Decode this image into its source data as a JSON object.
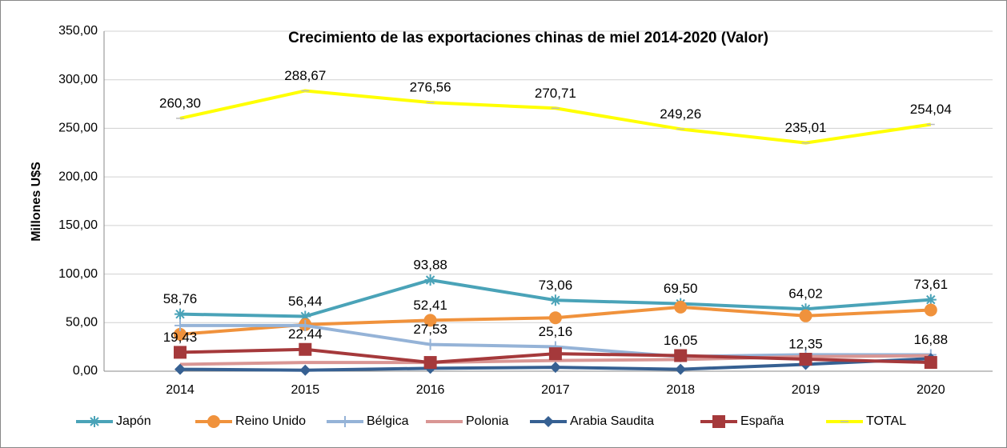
{
  "chart_data": {
    "type": "line",
    "title": "Crecimiento de las exportaciones chinas de miel 2014-2020 (Valor)",
    "y_label": "Millones U$S",
    "categories": [
      "2014",
      "2015",
      "2016",
      "2017",
      "2018",
      "2019",
      "2020"
    ],
    "ylim": [
      0,
      350
    ],
    "yticks": [
      {
        "value": 0,
        "label": "0,00"
      },
      {
        "value": 50,
        "label": "50,00"
      },
      {
        "value": 100,
        "label": "100,00"
      },
      {
        "value": 150,
        "label": "150,00"
      },
      {
        "value": 200,
        "label": "200,00"
      },
      {
        "value": 250,
        "label": "250,00"
      },
      {
        "value": 300,
        "label": "300,00"
      },
      {
        "value": 350,
        "label": "350,00"
      }
    ],
    "grid": true,
    "legend": "bottom",
    "series": [
      {
        "name": "Japón",
        "color": "#4aa3b8",
        "marker": "asterisk",
        "values": [
          58.76,
          56.44,
          93.88,
          73.06,
          69.5,
          64.02,
          73.61
        ],
        "value_labels": [
          "58,76",
          "56,44",
          "93,88",
          "73,06",
          "69,50",
          "64,02",
          "73,61"
        ]
      },
      {
        "name": "Reino Unido",
        "color": "#f0923c",
        "marker": "circle",
        "values": [
          38,
          48,
          52.41,
          55,
          66,
          57,
          63
        ],
        "value_labels": [
          null,
          null,
          "52,41",
          null,
          null,
          null,
          null
        ]
      },
      {
        "name": "Bélgica",
        "color": "#95b3d7",
        "marker": "plus",
        "values": [
          47,
          47,
          27.53,
          25.16,
          15,
          17,
          16.88
        ],
        "value_labels": [
          null,
          null,
          "27,53",
          "25,16",
          null,
          null,
          "16,88"
        ]
      },
      {
        "name": "Polonia",
        "color": "#d99694",
        "marker": "none",
        "values": [
          7,
          9,
          9,
          11,
          12,
          15,
          16
        ]
      },
      {
        "name": "Arabia Saudita",
        "color": "#366092",
        "marker": "diamond",
        "values": [
          2,
          1,
          3,
          4,
          2,
          7,
          13
        ]
      },
      {
        "name": "España",
        "color": "#a5393b",
        "marker": "square",
        "values": [
          19.43,
          22.44,
          9,
          18,
          16.05,
          12.35,
          9
        ],
        "value_labels": [
          "19,43",
          "22,44",
          null,
          null,
          "16,05",
          "12,35",
          null
        ]
      },
      {
        "name": "TOTAL",
        "color": "#ffff00",
        "marker": "dash",
        "values": [
          260.3,
          288.67,
          276.56,
          270.71,
          249.26,
          235.01,
          254.04
        ],
        "value_labels": [
          "260,30",
          "288,67",
          "276,56",
          "270,71",
          "249,26",
          "235,01",
          "254,04"
        ]
      }
    ]
  }
}
